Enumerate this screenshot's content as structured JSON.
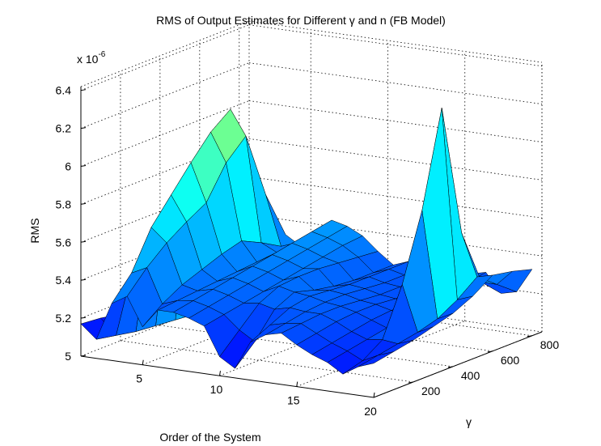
{
  "chart_data": {
    "type": "surface",
    "title": "RMS of Output Estimates for Different  γ and n (FB Model)",
    "xlabel": "Order of the System",
    "ylabel": "γ",
    "zlabel": "RMS",
    "z_exponent": "x 10",
    "z_exponent_power": "-6",
    "x_ticks": [
      "5",
      "10",
      "15",
      "20"
    ],
    "y_ticks": [
      "200",
      "400",
      "600",
      "800"
    ],
    "z_ticks": [
      "5",
      "5.2",
      "5.4",
      "5.6",
      "5.8",
      "6",
      "6.2",
      "6.4"
    ],
    "xlim": [
      1,
      20
    ],
    "ylim": [
      0,
      850
    ],
    "zlim": [
      5.0,
      6.42
    ],
    "grid": true,
    "colormap": "jet",
    "surface": {
      "n_values": [
        1,
        2,
        3,
        4,
        5,
        6,
        7,
        8,
        9,
        10,
        11,
        12,
        13,
        14,
        15,
        16,
        17,
        18,
        19,
        20
      ],
      "gamma_values": [
        0,
        100,
        200,
        300,
        400,
        500,
        600,
        700,
        800
      ],
      "rms": [
        [
          5.17,
          5.16,
          5.14,
          5.13,
          5.12,
          5.12,
          5.11,
          5.1,
          5.1
        ],
        [
          5.1,
          5.08,
          5.06,
          5.05,
          5.04,
          5.03,
          5.02,
          5.02,
          5.02
        ],
        [
          5.3,
          5.42,
          5.62,
          5.75,
          5.88,
          6.0,
          6.08,
          5.7,
          5.4
        ],
        [
          5.35,
          5.46,
          5.55,
          5.62,
          5.68,
          5.85,
          5.95,
          5.6,
          5.35
        ],
        [
          5.2,
          5.28,
          5.34,
          5.38,
          5.42,
          5.45,
          5.4,
          5.34,
          5.3
        ],
        [
          5.3,
          5.31,
          5.32,
          5.33,
          5.34,
          5.35,
          5.36,
          5.37,
          5.38
        ],
        [
          5.3,
          5.32,
          5.34,
          5.36,
          5.38,
          5.4,
          5.42,
          5.44,
          5.46
        ],
        [
          5.28,
          5.3,
          5.32,
          5.34,
          5.36,
          5.38,
          5.4,
          5.42,
          5.44
        ],
        [
          5.25,
          5.27,
          5.29,
          5.31,
          5.33,
          5.35,
          5.37,
          5.39,
          5.4
        ],
        [
          5.1,
          5.2,
          5.3,
          5.35,
          5.36,
          5.36,
          5.35,
          5.34,
          5.33
        ],
        [
          5.05,
          5.15,
          5.28,
          5.33,
          5.3,
          5.28,
          5.27,
          5.27,
          5.27
        ],
        [
          5.2,
          5.25,
          5.3,
          5.32,
          5.31,
          5.3,
          5.3,
          5.3,
          5.3
        ],
        [
          5.25,
          5.27,
          5.29,
          5.3,
          5.3,
          5.29,
          5.28,
          5.28,
          5.28
        ],
        [
          5.27,
          5.28,
          5.29,
          5.29,
          5.28,
          5.27,
          5.27,
          5.26,
          5.26
        ],
        [
          5.22,
          5.24,
          5.26,
          5.27,
          5.27,
          5.26,
          5.26,
          5.26,
          5.25
        ],
        [
          5.18,
          5.2,
          5.22,
          5.24,
          5.25,
          5.25,
          5.26,
          5.27,
          5.28
        ],
        [
          5.15,
          5.17,
          5.19,
          5.21,
          5.23,
          5.25,
          5.27,
          5.28,
          5.3
        ],
        [
          5.1,
          5.13,
          5.2,
          5.45,
          5.8,
          6.3,
          5.6,
          5.3,
          5.2
        ],
        [
          5.15,
          5.17,
          5.19,
          5.21,
          5.24,
          5.3,
          5.38,
          5.3,
          5.22
        ],
        [
          5.18,
          5.2,
          5.22,
          5.25,
          5.28,
          5.33,
          5.4,
          5.38,
          5.35
        ]
      ]
    }
  }
}
